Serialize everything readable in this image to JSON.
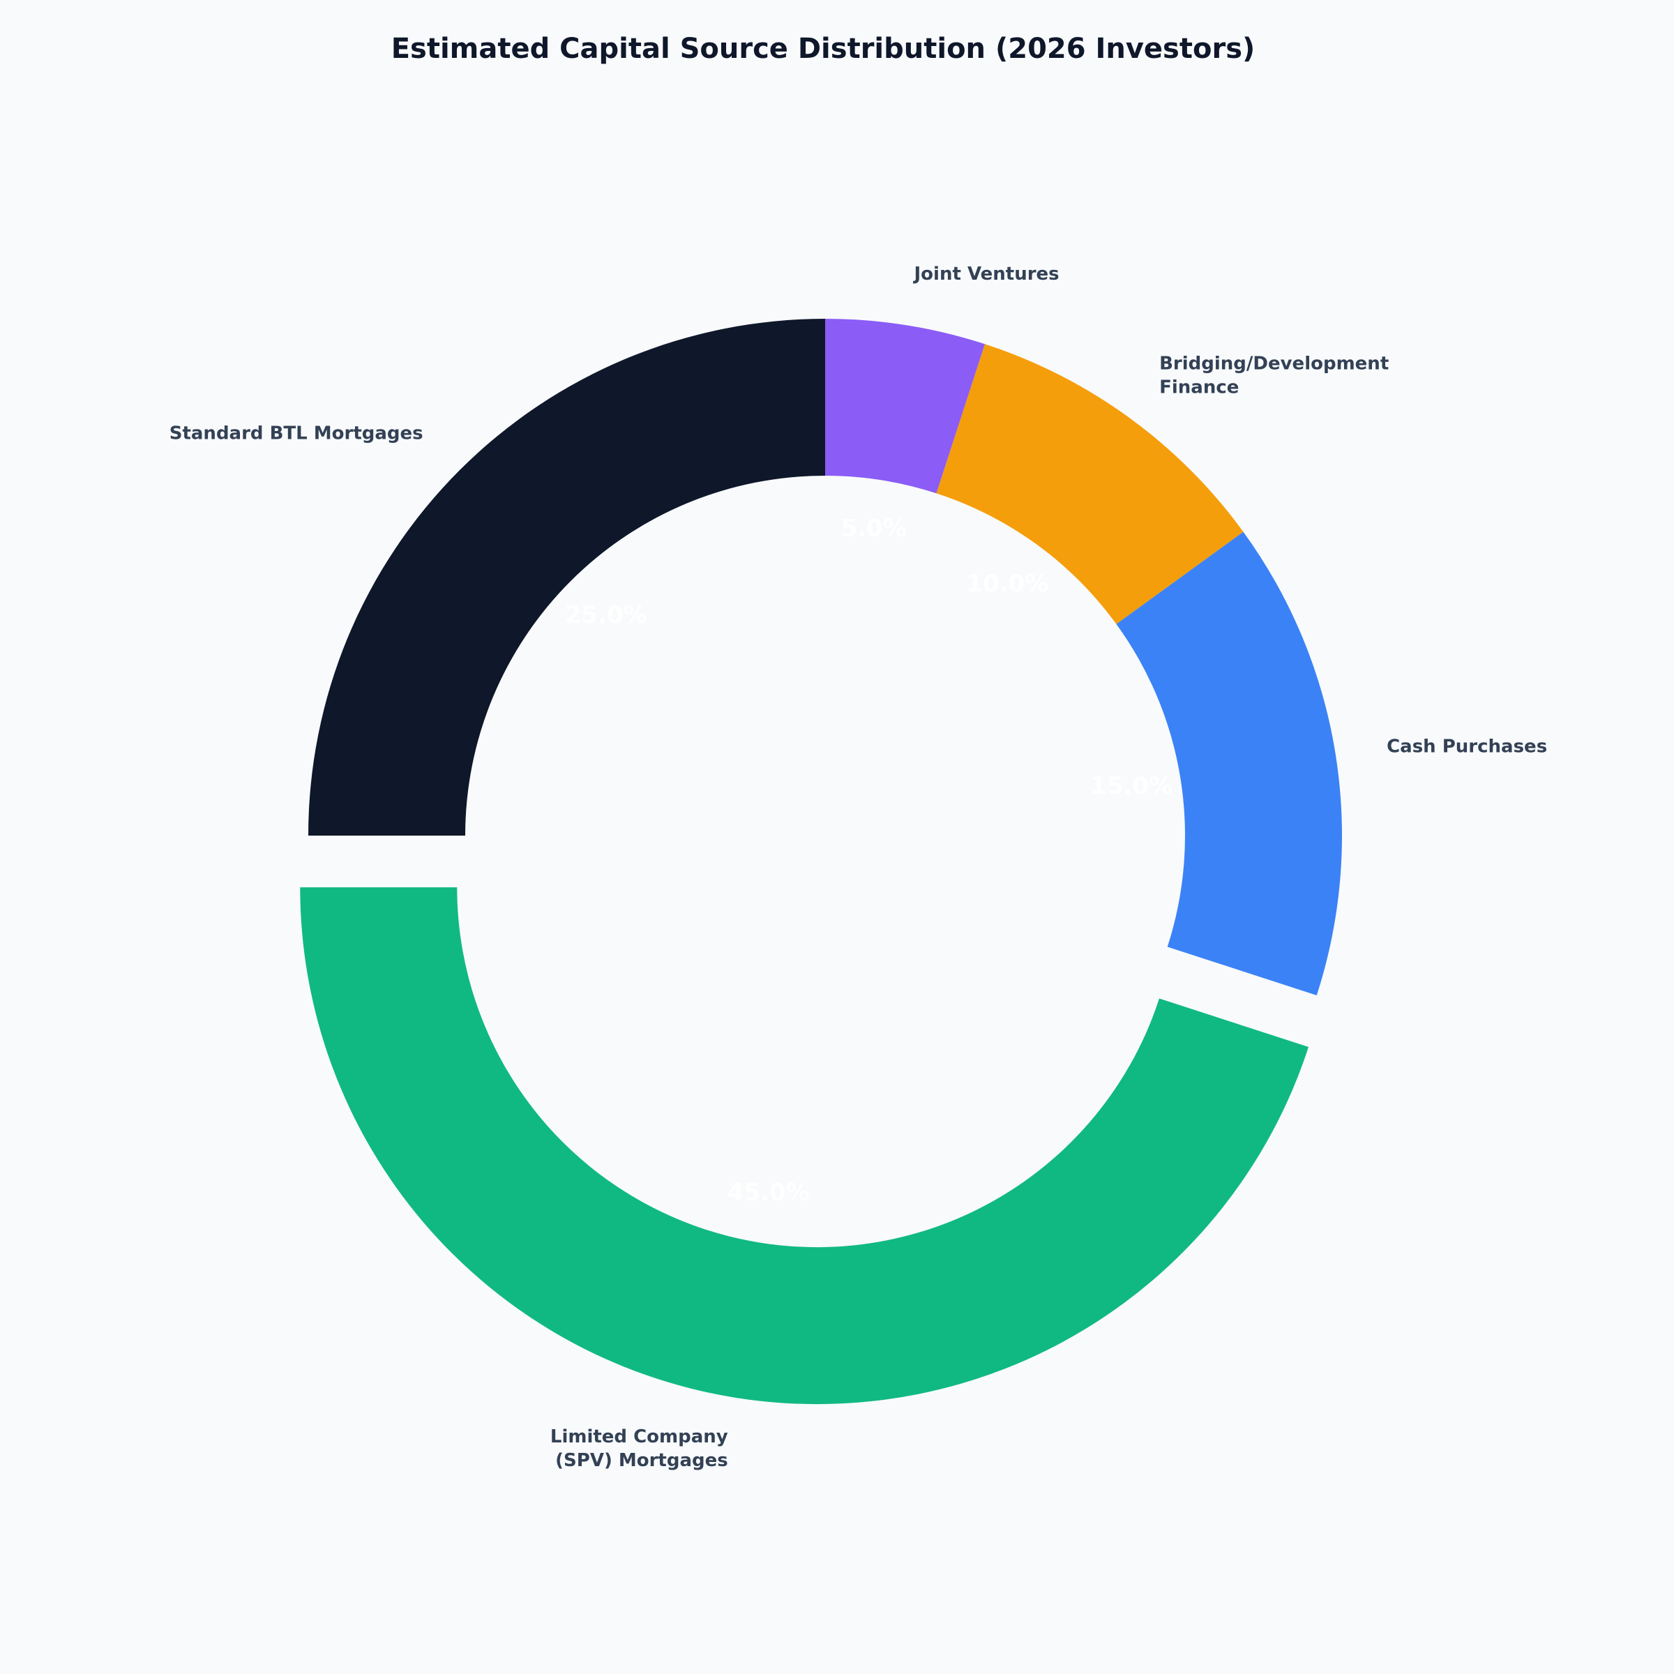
{
  "chart_data": {
    "type": "donut",
    "title": "Estimated Capital Source Distribution (2026 Investors)",
    "categories": [
      "Standard BTL Mortgages",
      "Limited Company\n(SPV) Mortgages",
      "Cash Purchases",
      "Bridging/Development\nFinance",
      "Joint Ventures"
    ],
    "values": [
      25,
      45,
      15,
      10,
      5
    ],
    "value_labels": [
      "25.0%",
      "45.0%",
      "15.0%",
      "10.0%",
      "5.0%"
    ],
    "colors": [
      "#0f172a",
      "#10b981",
      "#3b82f6",
      "#f59e0b",
      "#8b5cf6"
    ],
    "exploded": [
      false,
      true,
      false,
      false,
      false
    ]
  }
}
